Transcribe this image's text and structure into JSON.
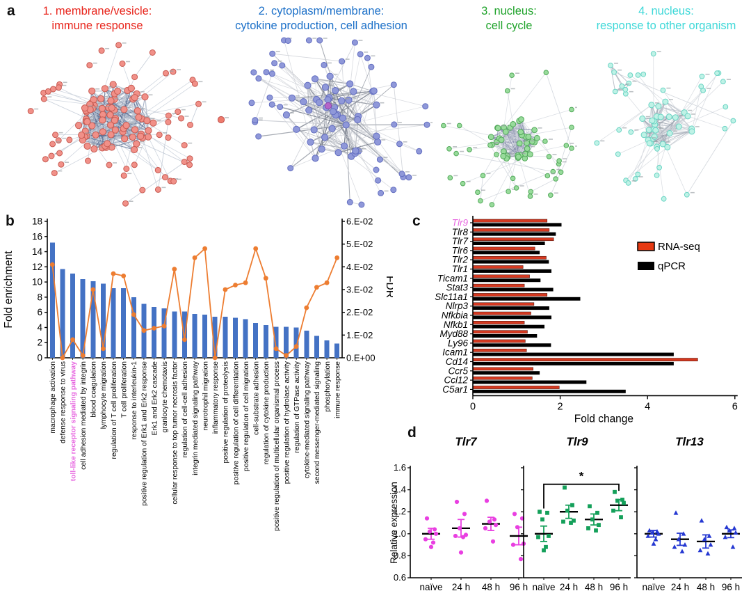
{
  "panels": {
    "a_label": "a",
    "b_label": "b",
    "c_label": "c",
    "d_label": "d"
  },
  "panel_a": {
    "networks": [
      {
        "number": "1.",
        "title_line1": "1. membrane/vesicle:",
        "title_line2": "immune response",
        "title_color": "#e8251c",
        "node_fill": "#f19088",
        "node_stroke": "#c75b52",
        "edge_dark": "#5a6e94",
        "edge_light": "#bcc5d2",
        "node_count": 125,
        "structure": "dense-core"
      },
      {
        "number": "2.",
        "title_line1": "2. cytoplasm/membrane:",
        "title_line2": "cytokine production, cell adhesion",
        "title_color": "#1c70c8",
        "node_fill": "#8f98d9",
        "node_stroke": "#636ec0",
        "edge_dark": "#6b7280",
        "edge_light": "#c9ccd3",
        "node_count": 86,
        "structure": "hub",
        "special_nodes": [
          {
            "name": "red-outlier-node",
            "fill": "#ee7b6c",
            "stroke": "#c0504d"
          },
          {
            "name": "purple-node",
            "fill": "#b465c8",
            "stroke": "#8e44ad"
          }
        ]
      },
      {
        "number": "3.",
        "title_line1": "3. nucleus:",
        "title_line2": "cell cycle",
        "title_color": "#1fa32b",
        "node_fill": "#98db9b",
        "node_stroke": "#52a95a",
        "edge_dark": "#8087a8",
        "edge_light": "#cdd2da",
        "node_count": 70,
        "structure": "core-satellite"
      },
      {
        "number": "4.",
        "title_line1": "4. nucleus:",
        "title_line2": "response to other organism",
        "title_color": "#3ed8d8",
        "node_fill": "#bff2e6",
        "node_stroke": "#6ad4c4",
        "edge_dark": "#99a1ae",
        "edge_light": "#ccd1d8",
        "node_count": 58,
        "structure": "core-satellite"
      }
    ]
  },
  "chart_data": [
    {
      "id": "panel_b",
      "type": "bar",
      "combo": true,
      "categories": [
        "macrophage activation",
        "defense response to virus",
        "toll-like receptor signaling pathway",
        "cell adhesion mediated by integrin",
        "blood coagulation",
        "lymphocyte migration",
        "regulation of T cell proliferation",
        "T cell proliferation",
        "response to interleukin-1",
        "positive regulation of Erk1 and Erk2 response",
        "Erk1 and Erk2 cascade",
        "granlocyte chemotaxis",
        "cellular response to top tumor necrosis factor",
        "regulation of cell-cell adhesion",
        "integrin mediated signaling pathway",
        "neurotrophil migration",
        "inflammatory response",
        "positive regulation of proteolysis",
        "positive regulation of cell differentiation",
        "positive regulation of cell migration",
        "cell-substrate adhesion",
        "regulation of cytokine production",
        "positive regulation of multicellular organismal process",
        "positive regulation of hydrolase activity",
        "regulation of GTPase activity",
        "cytokine-mediated signaling pathway",
        "second messenger-mediated signaling",
        "phosphorylation",
        "immune response"
      ],
      "series": [
        {
          "name": "Fold enrichment",
          "kind": "bar",
          "axis": "left",
          "color": "#4472c4",
          "values": [
            15.2,
            11.7,
            11.1,
            10.4,
            10.1,
            9.8,
            9.2,
            9.2,
            8.0,
            7.1,
            6.7,
            6.5,
            6.1,
            6.1,
            5.8,
            5.7,
            5.4,
            5.4,
            5.3,
            5.1,
            4.6,
            4.3,
            4.1,
            4.1,
            4.0,
            3.6,
            2.9,
            2.3,
            1.9
          ]
        },
        {
          "name": "FDR",
          "kind": "line",
          "axis": "right",
          "color": "#ed7d31",
          "values": [
            0.041,
            0.0,
            0.008,
            0.001,
            0.03,
            0.004,
            0.037,
            0.036,
            0.019,
            0.012,
            0.013,
            0.014,
            0.039,
            0.008,
            0.044,
            0.048,
            0.0,
            0.03,
            0.032,
            0.033,
            0.048,
            0.035,
            0.004,
            0.001,
            0.005,
            0.022,
            0.031,
            0.033,
            0.044
          ]
        }
      ],
      "ylabel_left": "Fold enrichment",
      "ylabel_right": "FDR",
      "ylim_left": [
        0,
        18
      ],
      "yticks_left": [
        "0",
        "2",
        "4",
        "6",
        "8",
        "10",
        "12",
        "14",
        "16",
        "18"
      ],
      "ylim_right": [
        0,
        0.06
      ],
      "yticks_right": [
        "0.E+00",
        "1.E-02",
        "2.E-02",
        "3.E-02",
        "4.E-02",
        "5.E-02",
        "6.E-02"
      ],
      "highlight_category": "toll-like receptor signaling pathway",
      "highlight_color": "#e767e0",
      "grid": false
    },
    {
      "id": "panel_c",
      "type": "bar",
      "orientation": "horizontal",
      "categories": [
        "Tlr9",
        "Tlr8",
        "Tlr7",
        "Tlr6",
        "Tlr2",
        "Tlr1",
        "Ticam1",
        "Stat3",
        "Slc11a1",
        "Nlrp3",
        "Nfkbia",
        "Nfkb1",
        "Myd88",
        "Ly96",
        "Icam1",
        "Cd14",
        "Ccr5",
        "Ccl12",
        "C5ar1"
      ],
      "series": [
        {
          "name": "RNA-seq",
          "color": "#d63920",
          "values": [
            1.7,
            1.75,
            1.85,
            1.42,
            1.68,
            1.15,
            1.3,
            1.18,
            1.7,
            1.4,
            1.33,
            1.18,
            1.25,
            1.2,
            1.23,
            5.15,
            1.38,
            1.36,
            1.98
          ]
        },
        {
          "name": "qPCR",
          "color": "#000000",
          "values": [
            2.03,
            1.9,
            1.65,
            1.53,
            1.74,
            1.8,
            1.55,
            1.84,
            2.46,
            1.75,
            1.8,
            1.64,
            1.47,
            1.79,
            4.6,
            4.6,
            1.53,
            2.6,
            3.5
          ]
        }
      ],
      "xlabel": "Fold change",
      "xlim": [
        0,
        6
      ],
      "xticks": [
        "0",
        "2",
        "4",
        "6"
      ],
      "highlight_category": "Tlr9",
      "highlight_color": "#e767e0",
      "legend_position": "upper-right"
    },
    {
      "id": "panel_d",
      "type": "scatter",
      "ylabel": "Relative expression",
      "ylim": [
        0.6,
        1.6
      ],
      "yticks": [
        "0.6",
        "0.8",
        "1.0",
        "1.2",
        "1.4",
        "1.6"
      ],
      "categories": [
        "naïve",
        "24 h",
        "48 h",
        "96 h"
      ],
      "subplots": [
        {
          "title": "Tlr7",
          "color": "#e93fe1",
          "marker": "circle",
          "points": [
            [
              1.14,
              1.04,
              1.02,
              1.0,
              0.95,
              0.92,
              0.88
            ],
            [
              1.29,
              1.18,
              1.05,
              0.99,
              0.98,
              0.97,
              0.83
            ],
            [
              1.3,
              1.13,
              1.11,
              1.08,
              1.05,
              0.93
            ],
            [
              1.18,
              1.14,
              1.06,
              0.91,
              0.9,
              0.77
            ]
          ],
          "means": [
            1.0,
            1.05,
            1.09,
            0.98
          ],
          "errors": [
            0.05,
            0.08,
            0.06,
            0.08
          ]
        },
        {
          "title": "Tlr9",
          "color": "#14a05a",
          "marker": "square",
          "points": [
            [
              1.2,
              1.19,
              1.13,
              0.98,
              0.97,
              0.88,
              0.85
            ],
            [
              1.42,
              1.26,
              1.21,
              1.12,
              1.11,
              1.1
            ],
            [
              1.25,
              1.19,
              1.13,
              1.08,
              1.05,
              1.03
            ],
            [
              1.38,
              1.31,
              1.3,
              1.28,
              1.21,
              1.15
            ]
          ],
          "means": [
            1.0,
            1.2,
            1.13,
            1.26
          ],
          "errors": [
            0.07,
            0.06,
            0.05,
            0.05
          ],
          "significance": {
            "from": 0,
            "to": 3,
            "label": "*",
            "top": 1.45,
            "drop_left": 1.23,
            "drop_right": 1.39
          }
        },
        {
          "title": "Tlr13",
          "color": "#2538d2",
          "marker": "triangle",
          "points": [
            [
              1.03,
              1.02,
              1.01,
              1.0,
              0.98,
              0.95,
              0.91
            ],
            [
              1.19,
              1.0,
              0.95,
              0.9,
              0.88,
              0.84
            ],
            [
              1.12,
              0.98,
              0.95,
              0.9,
              0.85,
              0.82
            ],
            [
              1.06,
              1.05,
              1.03,
              1.01,
              0.97,
              0.88
            ]
          ],
          "means": [
            1.0,
            0.95,
            0.93,
            1.0
          ],
          "errors": [
            0.03,
            0.055,
            0.06,
            0.035
          ]
        }
      ]
    }
  ]
}
